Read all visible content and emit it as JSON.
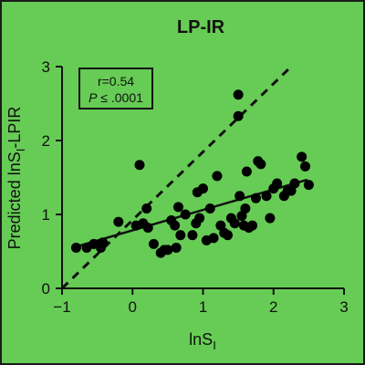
{
  "chart_data": {
    "type": "scatter",
    "title": "LP-IR",
    "xlabel": {
      "main": "lnS",
      "sub": "I"
    },
    "ylabel": {
      "pre": "Predicted lnS",
      "sub": "I",
      "post": "-LPIR"
    },
    "xlim": [
      -1,
      3
    ],
    "ylim": [
      0,
      3
    ],
    "xticks": [
      -1,
      0,
      1,
      2,
      3
    ],
    "yticks": [
      0,
      1,
      2,
      3
    ],
    "annotation": {
      "r": "r=0.54",
      "p_italic": "P",
      "p_rest": " ≤ .0001"
    },
    "identity_line": {
      "style": "dashed",
      "from": [
        -1,
        0
      ],
      "to": [
        2.25,
        3
      ]
    },
    "regression_line": {
      "style": "solid",
      "from": [
        -0.85,
        0.55
      ],
      "to": [
        2.48,
        1.47
      ]
    },
    "marker_color": "#000000",
    "background_color": "#66cc55",
    "points": [
      [
        -0.8,
        0.55
      ],
      [
        -0.65,
        0.55
      ],
      [
        -0.55,
        0.6
      ],
      [
        -0.45,
        0.55
      ],
      [
        -0.42,
        0.62
      ],
      [
        -0.2,
        0.9
      ],
      [
        0.05,
        0.85
      ],
      [
        0.1,
        1.67
      ],
      [
        0.15,
        0.88
      ],
      [
        0.2,
        1.08
      ],
      [
        0.22,
        0.82
      ],
      [
        0.3,
        0.6
      ],
      [
        0.4,
        0.48
      ],
      [
        0.45,
        0.52
      ],
      [
        0.5,
        0.52
      ],
      [
        0.55,
        0.92
      ],
      [
        0.6,
        0.85
      ],
      [
        0.62,
        0.55
      ],
      [
        0.65,
        1.1
      ],
      [
        0.68,
        0.72
      ],
      [
        0.75,
        1.0
      ],
      [
        0.85,
        0.72
      ],
      [
        0.9,
        0.88
      ],
      [
        0.92,
        1.3
      ],
      [
        0.95,
        0.95
      ],
      [
        1.0,
        1.35
      ],
      [
        1.05,
        0.65
      ],
      [
        1.1,
        1.08
      ],
      [
        1.15,
        0.68
      ],
      [
        1.2,
        1.52
      ],
      [
        1.25,
        0.85
      ],
      [
        1.3,
        0.75
      ],
      [
        1.35,
        0.72
      ],
      [
        1.4,
        0.95
      ],
      [
        1.45,
        0.88
      ],
      [
        1.5,
        2.62
      ],
      [
        1.5,
        2.33
      ],
      [
        1.52,
        1.25
      ],
      [
        1.55,
        0.98
      ],
      [
        1.58,
        0.85
      ],
      [
        1.6,
        1.08
      ],
      [
        1.62,
        1.58
      ],
      [
        1.65,
        0.82
      ],
      [
        1.7,
        0.85
      ],
      [
        1.75,
        1.22
      ],
      [
        1.78,
        1.72
      ],
      [
        1.82,
        1.68
      ],
      [
        1.9,
        1.25
      ],
      [
        1.95,
        0.95
      ],
      [
        2.0,
        1.35
      ],
      [
        2.05,
        1.42
      ],
      [
        2.15,
        1.25
      ],
      [
        2.2,
        1.32
      ],
      [
        2.25,
        1.32
      ],
      [
        2.3,
        1.42
      ],
      [
        2.4,
        1.78
      ],
      [
        2.45,
        1.65
      ],
      [
        2.5,
        1.4
      ]
    ]
  }
}
